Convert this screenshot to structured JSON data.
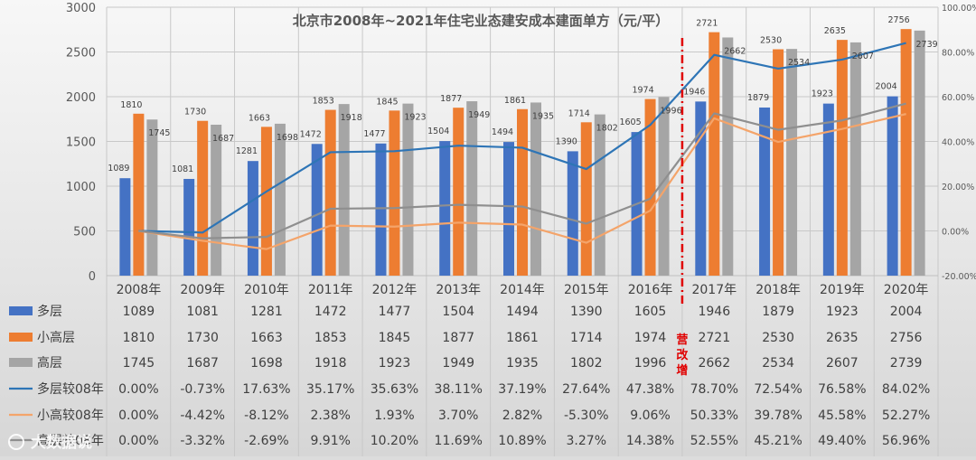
{
  "chart_data": {
    "type": "bar",
    "title": "北京市2008年~2021年住宅业态建安成本建面单方（元/平）",
    "categories": [
      "2008年",
      "2009年",
      "2010年",
      "2011年",
      "2012年",
      "2013年",
      "2014年",
      "2015年",
      "2016年",
      "2017年",
      "2018年",
      "2019年",
      "2020年"
    ],
    "y_left": {
      "min": 0,
      "max": 3000,
      "ticks": [
        "0",
        "500",
        "1000",
        "1500",
        "2000",
        "2500",
        "3000"
      ]
    },
    "y_right": {
      "min": -20,
      "max": 100,
      "ticks": [
        "-20.00%",
        "0.00%",
        "20.00%",
        "40.00%",
        "60.00%",
        "80.00%",
        "100.00%"
      ]
    },
    "grid": true,
    "legend_placement": "data-table-left",
    "bar_series": [
      {
        "name": "多层",
        "color": "#4472c4",
        "values": [
          1089,
          1081,
          1281,
          1472,
          1477,
          1504,
          1494,
          1390,
          1605,
          1946,
          1879,
          1923,
          2004
        ],
        "labels": [
          "1089",
          "1081",
          "1281",
          "1472",
          "1477",
          "1504",
          "1494",
          "1390",
          "1605",
          "1946",
          "1879",
          "1923",
          "2004"
        ]
      },
      {
        "name": "小高层",
        "color": "#ed7d31",
        "values": [
          1810,
          1730,
          1663,
          1853,
          1845,
          1877,
          1861,
          1714,
          1974,
          2721,
          2530,
          2635,
          2756
        ],
        "labels": [
          "1810",
          "1730",
          "1663",
          "1853",
          "1845",
          "1877",
          "1861",
          "1714",
          "1974",
          "2721",
          "2530",
          "2635",
          "2756"
        ]
      },
      {
        "name": "高层",
        "color": "#a5a5a5",
        "values": [
          1745,
          1687,
          1698,
          1918,
          1923,
          1949,
          1935,
          1802,
          1996,
          2662,
          2534,
          2607,
          2739
        ],
        "labels": [
          "1745",
          "1687",
          "1698",
          "1918",
          "1923",
          "1949",
          "1935",
          "1802",
          "1996",
          "2662",
          "2534",
          "2607",
          "2739"
        ]
      }
    ],
    "line_series": [
      {
        "name": "多层较08年",
        "color": "#2e75b6",
        "values": [
          0.0,
          -0.73,
          17.63,
          35.17,
          35.63,
          38.11,
          37.19,
          27.64,
          47.38,
          78.7,
          72.54,
          76.58,
          84.02
        ],
        "labels": [
          "0.00%",
          "-0.73%",
          "17.63%",
          "35.17%",
          "35.63%",
          "38.11%",
          "37.19%",
          "27.64%",
          "47.38%",
          "78.70%",
          "72.54%",
          "76.58%",
          "84.02%"
        ]
      },
      {
        "name": "小高较08年",
        "color": "#f4a46a",
        "values": [
          0.0,
          -4.42,
          -8.12,
          2.38,
          1.93,
          3.7,
          2.82,
          -5.3,
          9.06,
          50.33,
          39.78,
          45.58,
          52.27
        ],
        "labels": [
          "0.00%",
          "-4.42%",
          "-8.12%",
          "2.38%",
          "1.93%",
          "3.70%",
          "2.82%",
          "-5.30%",
          "9.06%",
          "50.33%",
          "39.78%",
          "45.58%",
          "52.27%"
        ]
      },
      {
        "name": "高层较08年",
        "color": "#8f8f8f",
        "values": [
          0.0,
          -3.32,
          -2.69,
          9.91,
          10.2,
          11.69,
          10.89,
          3.27,
          14.38,
          52.55,
          45.21,
          49.4,
          56.96
        ],
        "labels": [
          "0.00%",
          "-3.32%",
          "-2.69%",
          "9.91%",
          "10.20%",
          "11.69%",
          "10.89%",
          "3.27%",
          "14.38%",
          "52.55%",
          "45.21%",
          "49.40%",
          "56.96%"
        ]
      }
    ],
    "annotation": {
      "text": "营改增",
      "color": "#e00000"
    },
    "watermark": "大数据说"
  }
}
